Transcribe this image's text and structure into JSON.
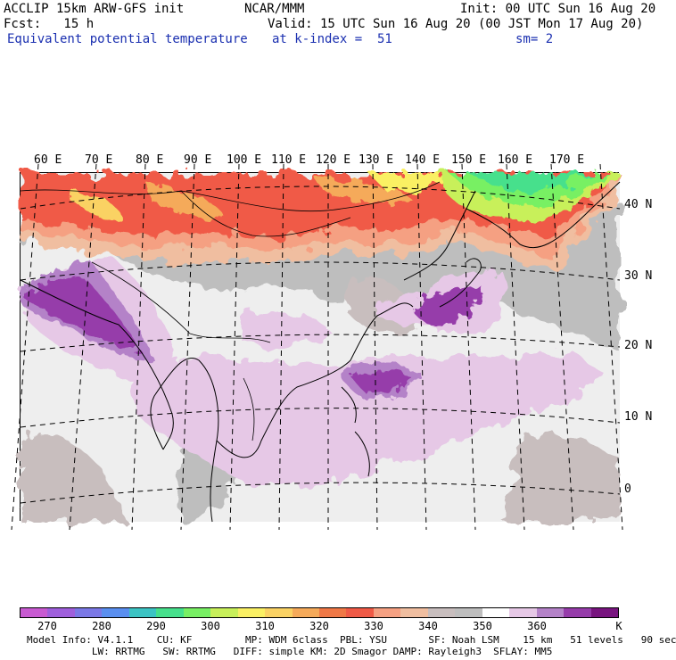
{
  "header": {
    "line1_left": "ACCLIP 15km ARW-GFS init",
    "line1_center": "NCAR/MMM",
    "line1_right": "Init: 00 UTC Sun 16 Aug 20",
    "line2_left": "Fcst:   15 h",
    "line2_right": "Valid: 15 UTC Sun 16 Aug 20 (00 JST Mon 17 Aug 20)",
    "field_name": "Equivalent potential temperature",
    "level": "at k-index =  51",
    "smoothing": "sm= 2"
  },
  "longitude_labels": [
    "60 E",
    "70 E",
    "80 E",
    "90 E",
    "100 E",
    "110 E",
    "120 E",
    "130 E",
    "140 E",
    "150 E",
    "160 E",
    "170 E"
  ],
  "latitude_labels": [
    "40 N",
    "30 N",
    "20 N",
    "10 N",
    "0"
  ],
  "colorbar": {
    "unit": "K",
    "tick_labels": [
      "270",
      "280",
      "290",
      "300",
      "310",
      "320",
      "330",
      "340",
      "350",
      "360"
    ],
    "colors": [
      "#c85ad2",
      "#9f5fdc",
      "#7b78e6",
      "#5a8ff0",
      "#3cc4c4",
      "#46e08c",
      "#78f064",
      "#c8f05a",
      "#faf064",
      "#fad264",
      "#f5aa5a",
      "#f07846",
      "#f05a46",
      "#f5a082",
      "#f0bea0",
      "#c8bebe",
      "#bebebe",
      "#ffffff",
      "#e6c8e6",
      "#b482c8",
      "#963caa",
      "#78147f"
    ]
  },
  "model_info": {
    "line1": "Model Info: V4.1.1    CU: KF         MP: WDM 6class  PBL: YSU       SF: Noah LSM    15 km   51 levels   90 sec",
    "line2": "           LW: RRTMG   SW: RRTMG   DIFF: simple KM: 2D Smagor DAMP: Rayleigh3  SFLAY: MM5"
  }
}
